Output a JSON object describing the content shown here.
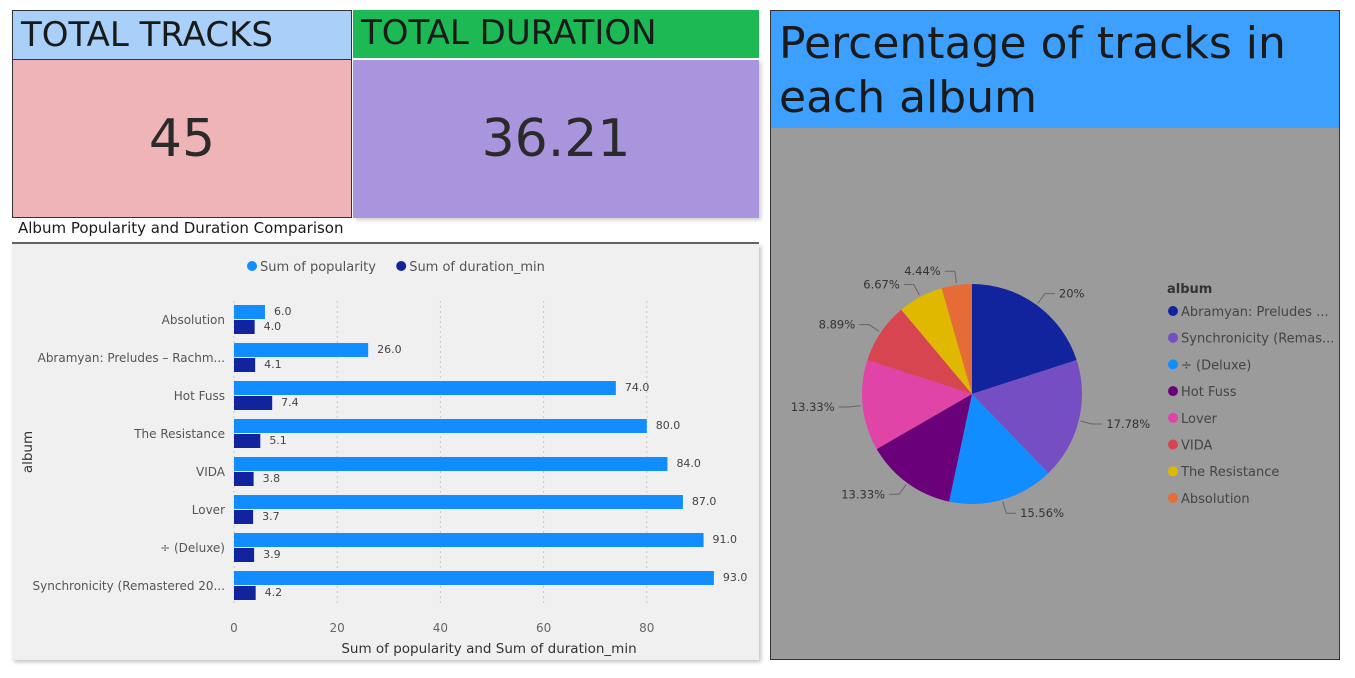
{
  "cards": {
    "tracks": {
      "title": "TOTAL TRACKS",
      "value": "45",
      "header_color": "#a8d0f8",
      "body_color": "#efb4b8"
    },
    "duration": {
      "title": "TOTAL DURATION",
      "value": "36.21",
      "header_color": "#1db954",
      "body_color": "#a995dd"
    }
  },
  "bar_chart_title": "Album Popularity and Duration Comparison",
  "pie_title": "Percentage of tracks in each album",
  "chart_data": [
    {
      "type": "bar",
      "orientation": "horizontal",
      "title": "Album Popularity and Duration Comparison",
      "xlabel": "Sum of popularity and Sum of duration_min",
      "ylabel": "album",
      "xlim": [
        0,
        93
      ],
      "xticks": [
        0,
        20,
        40,
        60,
        80
      ],
      "grid": true,
      "legend_position": "top",
      "categories": [
        "Absolution",
        "Abramyan: Preludes – Rachm...",
        "Hot Fuss",
        "The Resistance",
        "VIDA",
        "Lover",
        "÷ (Deluxe)",
        "Synchronicity (Remastered 20..."
      ],
      "series": [
        {
          "name": "Sum of popularity",
          "color": "#118dff",
          "values": [
            6.0,
            26.0,
            74.0,
            80.0,
            84.0,
            87.0,
            91.0,
            93.0
          ],
          "labels": [
            "6.0",
            "26.0",
            "74.0",
            "80.0",
            "84.0",
            "87.0",
            "91.0",
            "93.0"
          ]
        },
        {
          "name": "Sum of duration_min",
          "color": "#12239e",
          "values": [
            4.0,
            4.1,
            7.4,
            5.1,
            3.8,
            3.7,
            3.9,
            4.2
          ],
          "labels": [
            "4.0",
            "4.1",
            "7.4",
            "5.1",
            "3.8",
            "3.7",
            "3.9",
            "4.2"
          ]
        }
      ]
    },
    {
      "type": "pie",
      "title": "Percentage of tracks in each album",
      "legend_title": "album",
      "legend_position": "right",
      "slices": [
        {
          "label": "Abramyan: Preludes ...",
          "value": 20,
          "pct_label": "20%",
          "color": "#12239e"
        },
        {
          "label": "Synchronicity (Remas...",
          "value": 17.78,
          "pct_label": "17.78%",
          "color": "#744ec2"
        },
        {
          "label": "÷ (Deluxe)",
          "value": 15.56,
          "pct_label": "15.56%",
          "color": "#118dff"
        },
        {
          "label": "Hot Fuss",
          "value": 13.33,
          "pct_label": "13.33%",
          "color": "#6b007b"
        },
        {
          "label": "Lover",
          "value": 13.33,
          "pct_label": "13.33%",
          "color": "#e044a7"
        },
        {
          "label": "VIDA",
          "value": 8.89,
          "pct_label": "8.89%",
          "color": "#d64550"
        },
        {
          "label": "The Resistance",
          "value": 6.67,
          "pct_label": "6.67%",
          "color": "#e1b800"
        },
        {
          "label": "Absolution",
          "value": 4.44,
          "pct_label": "4.44%",
          "color": "#e66c37"
        }
      ]
    }
  ]
}
